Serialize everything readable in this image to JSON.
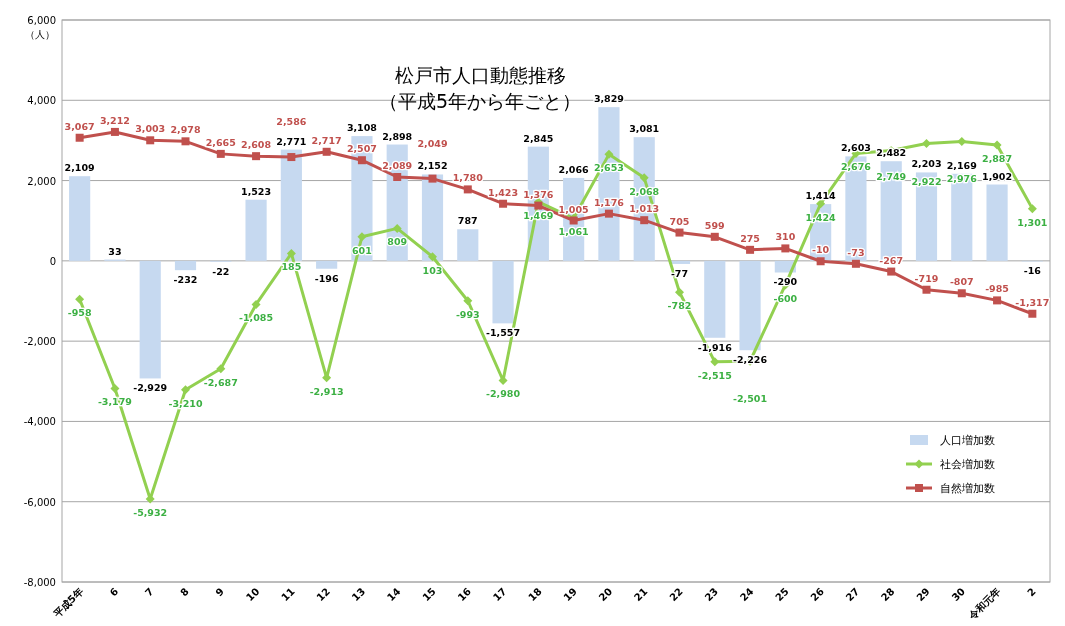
{
  "chart_data": {
    "type": "bar",
    "title": "松戸市人口動態推移",
    "subtitle": "（平成5年から年ごと）",
    "ylabel": "（人）",
    "categories": [
      "平成5年",
      "6",
      "7",
      "8",
      "9",
      "10",
      "11",
      "12",
      "13",
      "14",
      "15",
      "16",
      "17",
      "18",
      "19",
      "20",
      "21",
      "22",
      "23",
      "24",
      "25",
      "26",
      "27",
      "28",
      "29",
      "30",
      "令和元年",
      "2"
    ],
    "series": [
      {
        "name": "人口増加数",
        "color": "#c6d9f0",
        "values": [
          2109,
          33,
          -2929,
          -232,
          -22,
          1523,
          2771,
          -196,
          3108,
          2898,
          2152,
          787,
          -1557,
          2845,
          2066,
          3829,
          3081,
          -77,
          -1916,
          -2226,
          -290,
          1414,
          2603,
          2482,
          2203,
          2169,
          1902,
          -16
        ],
        "value_labels": [
          "2,109",
          "33",
          "-2,929",
          "-232",
          "-22",
          "1,523",
          "2,771",
          "-196",
          "3,108",
          "2,898",
          "2,152",
          "787",
          "-1,557",
          "2,845",
          "2,066",
          "3,829",
          "3,081",
          "-77",
          "-1,916",
          "-2,226",
          "-290",
          "1,414",
          "2,603",
          "2,482",
          "2,203",
          "2,169",
          "1,902",
          "-16"
        ]
      },
      {
        "name": "社会増加数",
        "type": "line",
        "color": "#92d050",
        "marker": "diamond",
        "values": [
          -958,
          -3179,
          -5932,
          -3210,
          -2687,
          -1085,
          185,
          -2913,
          601,
          809,
          103,
          -993,
          -2980,
          1469,
          1061,
          2653,
          2068,
          -782,
          -2515,
          -2501,
          -600,
          1424,
          2676,
          2749,
          2922,
          2976,
          2887,
          1301
        ],
        "value_labels": [
          "-958",
          "-3,179",
          "-5,932",
          "-3,210",
          "-2,687",
          "-1,085",
          "185",
          "-2,913",
          "601",
          "809",
          "103",
          "-993",
          "-2,980",
          "1,469",
          "1,061",
          "2,653",
          "2,068",
          "-782",
          "-2,515",
          "-2,501",
          "-600",
          "1,424",
          "2,676",
          "2,749",
          "2,922",
          "2,976",
          "2,887",
          "1,301"
        ]
      },
      {
        "name": "自然増加数",
        "type": "line",
        "color": "#c0504d",
        "marker": "square",
        "values": [
          3067,
          3212,
          3003,
          2978,
          2665,
          2608,
          2586,
          2717,
          2507,
          2089,
          2049,
          1780,
          1423,
          1376,
          1005,
          1176,
          1013,
          705,
          599,
          275,
          310,
          -10,
          -73,
          -267,
          -719,
          -807,
          -985,
          -1317
        ],
        "value_labels": [
          "3,067",
          "3,212",
          "3,003",
          "2,978",
          "2,665",
          "2,608",
          "2,586",
          "2,717",
          "2,507",
          "2,089",
          "2,049",
          "1,780",
          "1,423",
          "1,376",
          "1,005",
          "1,176",
          "1,013",
          "705",
          "599",
          "275",
          "310",
          "-10",
          "-73",
          "-267",
          "-719",
          "-807",
          "-985",
          "-1,317"
        ]
      }
    ],
    "ylim": [
      -8000,
      6000
    ],
    "yticks": [
      {
        "value": -8000,
        "label": "-8,000"
      },
      {
        "value": -6000,
        "label": "-6,000"
      },
      {
        "value": -4000,
        "label": "-4,000"
      },
      {
        "value": -2000,
        "label": "-2,000"
      },
      0,
      {
        "value": 2000,
        "label": "2,000"
      },
      {
        "value": 4000,
        "label": "4,000"
      },
      {
        "value": 6000,
        "label": "6,000"
      }
    ],
    "grid": "y",
    "legend": "bottom right"
  }
}
